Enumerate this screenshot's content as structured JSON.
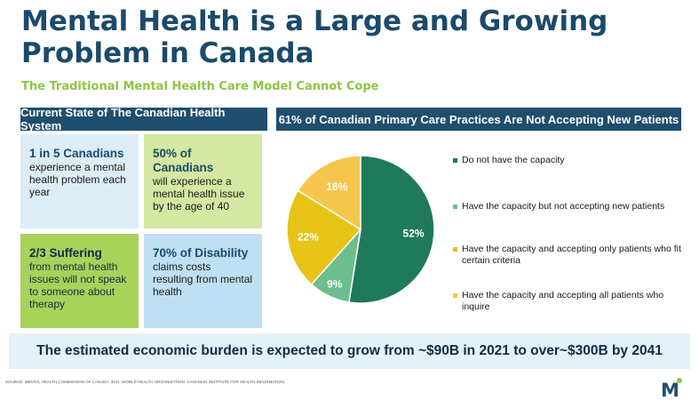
{
  "title": "Mental Health is a Large and Growing Problem in Canada",
  "subtitle": "The Traditional Mental Health Care Model Cannot Cope",
  "left_header": "Current State of The Canadian Health System",
  "right_header": "61% of Canadian Primary Care Practices Are Not Accepting New Patients",
  "cards": [
    {
      "head": "1 in 5 Canadians",
      "body": "experience a mental health problem each year",
      "color": "#dcedf7"
    },
    {
      "head": "50% of Canadians",
      "body": "will experience a mental health issue by the age of 40",
      "color": "#d5e8a2"
    },
    {
      "head": "2/3 Suffering",
      "body": "from mental health issues will not speak to someone about therapy",
      "color": "#a8d25a"
    },
    {
      "head": "70% of Disability",
      "body": "claims costs resulting from mental health",
      "color": "#bfe0f2"
    }
  ],
  "chart_data": {
    "type": "pie",
    "title": "61% of Canadian Primary Care Practices Are Not Accepting New Patients",
    "categories": [
      "Do not have the capacity",
      "Have the capacity but not accepting new patients",
      "Have the capacity and accepting only patients who fit certain criteria",
      "Have the capacity and accepting all patients who inquire"
    ],
    "values": [
      52,
      9,
      22,
      16
    ],
    "labels": [
      "52%",
      "9%",
      "22%",
      "16%"
    ],
    "colors": [
      "#1e7a5a",
      "#6dbe8f",
      "#e6c316",
      "#f5c64e"
    ],
    "legend_position": "right"
  },
  "banner": "The estimated economic burden is expected to grow from ~$90B in 2021 to over~$300B by 2041",
  "source": "SOURCE: MENTAL HEALTH COMMISSION OF CANADA, 2011; WORLD HEALTH ORGANIZATION; CANADIAN INSTITUTE FOR HEALTH INFORMATION.",
  "logo_letter": "M"
}
